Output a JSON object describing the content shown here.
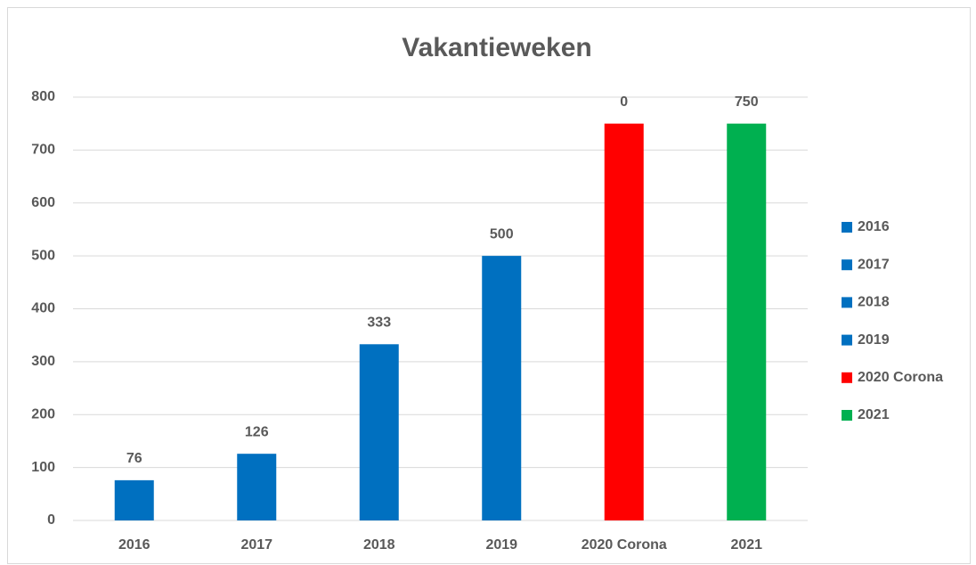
{
  "chart_data": {
    "type": "bar",
    "title": "Vakantieweken",
    "categories": [
      "2016",
      "2017",
      "2018",
      "2019",
      "2020 Corona",
      "2021"
    ],
    "values": [
      76,
      126,
      333,
      500,
      750,
      750
    ],
    "colors": [
      "#0070c0",
      "#0070c0",
      "#0070c0",
      "#0070c0",
      "#ff0000",
      "#00b050"
    ],
    "annotations": [
      {
        "text": "0",
        "category": "2020 Corona"
      }
    ],
    "ylim": [
      0,
      800
    ],
    "yticks": [
      0,
      100,
      200,
      300,
      400,
      500,
      600,
      700,
      800
    ],
    "grid": true,
    "legend": "right"
  }
}
